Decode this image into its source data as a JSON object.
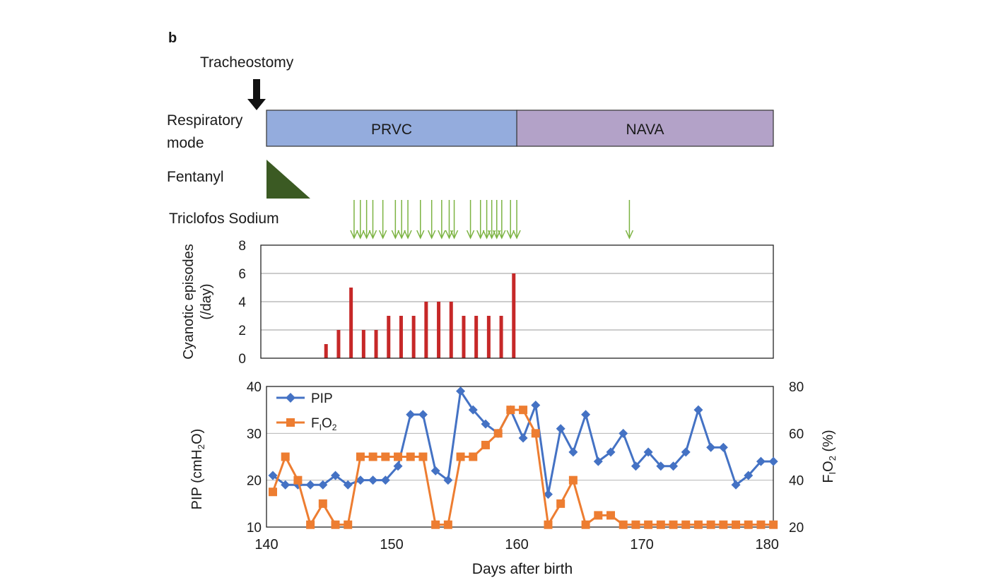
{
  "panel_label": "b",
  "timeline": {
    "tracheostomy_label": "Tracheostomy",
    "respiratory_mode_label_line1": "Respiratory",
    "respiratory_mode_label_line2": "mode",
    "modes": [
      {
        "name": "PRVC",
        "from_day": 140,
        "to_day": 160,
        "color": "#94acdd"
      },
      {
        "name": "NAVA",
        "from_day": 160,
        "to_day": 180.5,
        "color": "#b3a2c8"
      }
    ],
    "fentanyl_label": "Fentanyl",
    "fentanyl": {
      "from_day": 140,
      "to_day": 143.5,
      "color": "#3b5a23"
    },
    "triclofos_label": "Triclofos Sodium",
    "triclofos_days": [
      147,
      147.5,
      148,
      148.5,
      149.3,
      150.3,
      150.8,
      151.3,
      152.3,
      153.2,
      154,
      154.6,
      155,
      156.3,
      157.1,
      157.6,
      158,
      158.4,
      158.8,
      159.5,
      160,
      169
    ],
    "arrow_color": "#7cb342",
    "tracheostomy_day": 140.5
  },
  "chart_data": [
    {
      "type": "bar",
      "ylabel_line1": "Cyanotic episodes",
      "ylabel_line2": "(/day)",
      "ylim": [
        0,
        8
      ],
      "yticks": [
        0,
        2,
        4,
        6,
        8
      ],
      "grid": true,
      "color": "#c62828",
      "x": [
        146,
        147,
        148,
        149,
        150,
        151,
        152,
        153,
        154,
        155,
        156,
        157,
        158,
        159,
        160,
        161
      ],
      "values": [
        1,
        2,
        5,
        2,
        2,
        3,
        3,
        3,
        4,
        4,
        4,
        3,
        3,
        3,
        3,
        6
      ]
    },
    {
      "type": "line",
      "xlabel": "Days after birth",
      "xlim": [
        140,
        180.5
      ],
      "xticks": [
        140,
        150,
        160,
        170,
        180
      ],
      "ylabel_left": "PIP (cmH2O)",
      "ylim_left": [
        10,
        40
      ],
      "yticks_left": [
        10,
        20,
        30,
        40
      ],
      "ylabel_right": "FIO2 (%)",
      "ylim_right": [
        20,
        80
      ],
      "yticks_right": [
        20,
        40,
        60,
        80
      ],
      "grid": true,
      "legend_position": "top-left",
      "series": [
        {
          "name": "PIP",
          "axis": "left",
          "color": "#4472c4",
          "marker": "diamond",
          "x": [
            140,
            141,
            142,
            143,
            144,
            145,
            146,
            147,
            148,
            149,
            150,
            151,
            152,
            153,
            154,
            155,
            156,
            157,
            158,
            159,
            160,
            161,
            162,
            163,
            164,
            165,
            166,
            167,
            168,
            169,
            170,
            171,
            172,
            173,
            174,
            175,
            176,
            177,
            178,
            179,
            180
          ],
          "values": [
            21,
            19,
            19,
            19,
            19,
            21,
            19,
            20,
            20,
            20,
            23,
            34,
            34,
            22,
            20,
            39,
            35,
            32,
            30,
            35,
            29,
            36,
            17,
            31,
            26,
            34,
            24,
            26,
            30,
            23,
            26,
            23,
            23,
            26,
            35,
            27,
            27,
            19,
            21,
            24,
            24
          ]
        },
        {
          "name": "FIO2",
          "axis": "right",
          "color": "#ed7d31",
          "marker": "square",
          "x": [
            140,
            141,
            142,
            143,
            144,
            145,
            146,
            147,
            148,
            149,
            150,
            151,
            152,
            153,
            154,
            155,
            156,
            157,
            158,
            159,
            160,
            161,
            162,
            163,
            164,
            165,
            166,
            167,
            168,
            169,
            170,
            171,
            172,
            173,
            174,
            175,
            176,
            177,
            178,
            179,
            180
          ],
          "values": [
            35,
            50,
            40,
            21,
            30,
            21,
            21,
            50,
            50,
            50,
            50,
            50,
            50,
            21,
            21,
            50,
            50,
            55,
            60,
            70,
            70,
            60,
            21,
            30,
            40,
            21,
            25,
            25,
            21,
            21,
            21,
            21,
            21,
            21,
            21,
            21,
            21,
            21,
            21,
            21,
            21
          ]
        }
      ]
    }
  ]
}
